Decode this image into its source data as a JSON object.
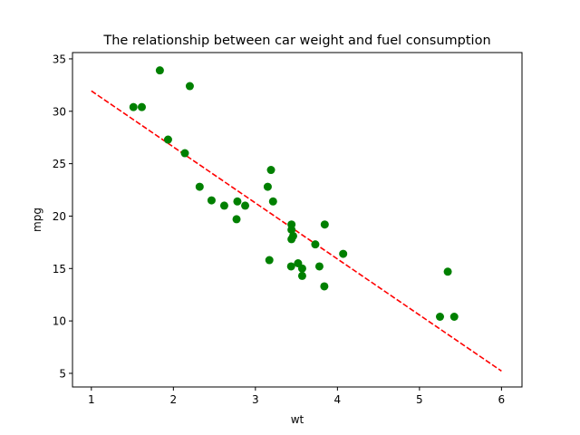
{
  "chart_data": {
    "type": "scatter",
    "title": "The relationship between car weight and fuel consumption",
    "xlabel": "wt",
    "ylabel": "mpg",
    "xlim": [
      0.77,
      6.25
    ],
    "ylim": [
      3.7,
      35.6
    ],
    "xticks": [
      1,
      2,
      3,
      4,
      5,
      6
    ],
    "yticks": [
      5,
      10,
      15,
      20,
      25,
      30,
      35
    ],
    "grid": false,
    "colors": {
      "points": "#008000",
      "fit_line": "#ff0000"
    },
    "series": [
      {
        "type": "scatter",
        "x": [
          2.62,
          2.875,
          2.32,
          3.215,
          3.44,
          3.46,
          3.57,
          3.19,
          3.15,
          3.44,
          3.44,
          4.07,
          3.73,
          3.78,
          5.25,
          5.424,
          5.345,
          2.2,
          1.615,
          1.835,
          2.465,
          3.52,
          3.435,
          3.84,
          3.845,
          1.935,
          2.14,
          1.513,
          3.17,
          2.77,
          3.57,
          2.78
        ],
        "y": [
          21.0,
          21.0,
          22.8,
          21.4,
          18.7,
          18.1,
          14.3,
          24.4,
          22.8,
          19.2,
          17.8,
          16.4,
          17.3,
          15.2,
          10.4,
          10.4,
          14.7,
          32.4,
          30.4,
          33.9,
          21.5,
          15.5,
          15.2,
          13.3,
          19.2,
          27.3,
          26.0,
          30.4,
          15.8,
          19.7,
          15.0,
          21.4
        ]
      },
      {
        "type": "line",
        "style": "dashed",
        "x": [
          1,
          6
        ],
        "y": [
          31.94,
          5.22
        ]
      }
    ]
  }
}
